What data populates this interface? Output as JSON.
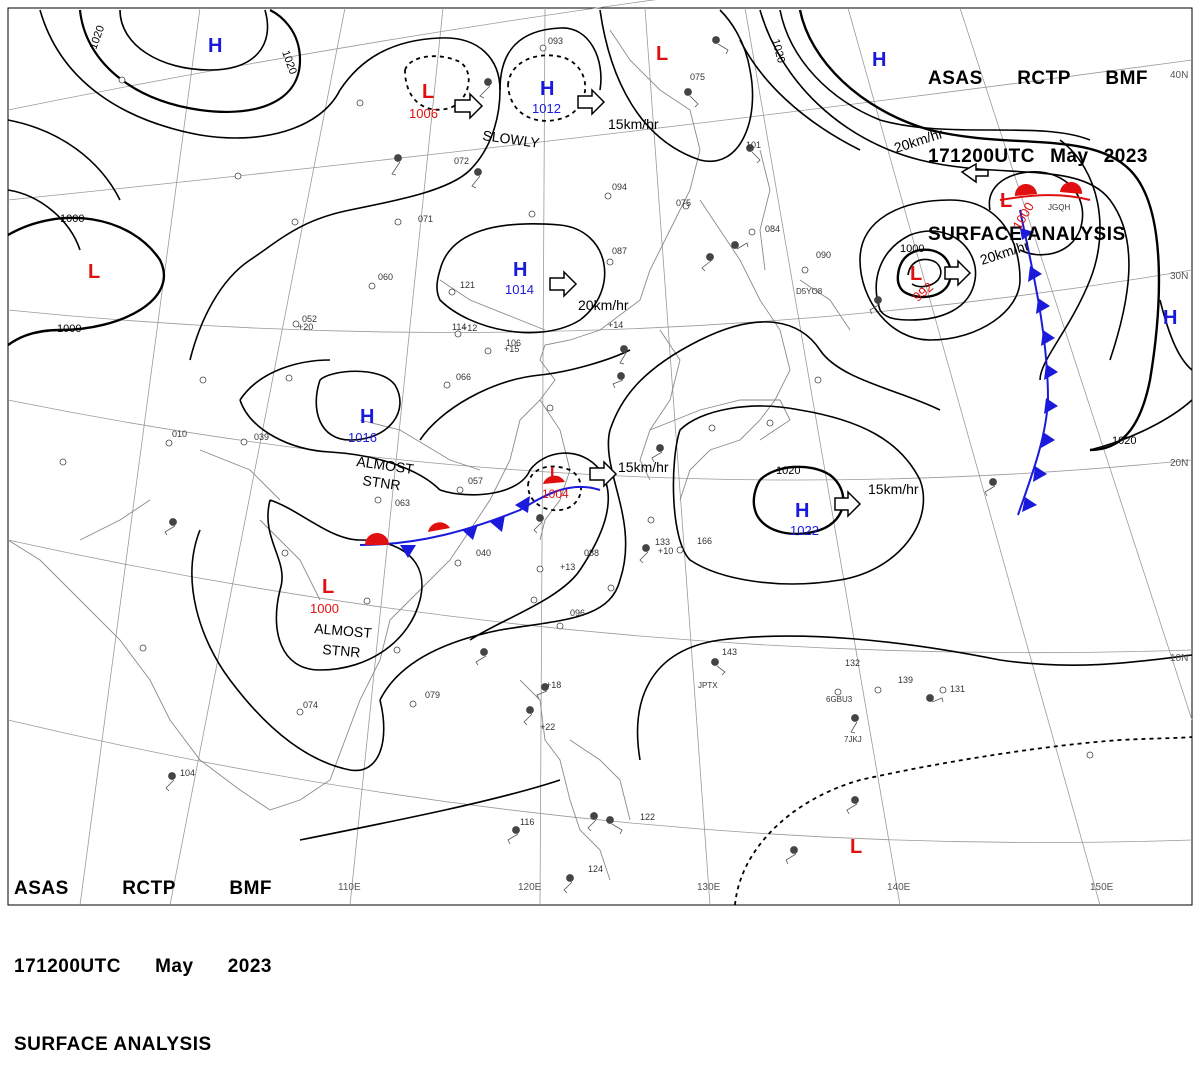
{
  "header": {
    "line1": [
      "ASAS",
      "RCTP",
      "BMF"
    ],
    "line2": [
      "171200UTC",
      "May",
      "2023"
    ],
    "line3": "SURFACE ANALYSIS"
  },
  "longitude_labels": [
    "110E",
    "120E",
    "130E",
    "140E",
    "150E"
  ],
  "latitude_labels": [
    "40N",
    "30N",
    "20N",
    "10N"
  ],
  "colors": {
    "high": "#1a1adc",
    "low": "#e01010",
    "isobar": "#000000",
    "grid": "#9a9a9a",
    "coast": "#8a8a8a"
  },
  "pressure_centers": [
    {
      "type": "H",
      "label": "H",
      "value": ""
    },
    {
      "type": "H",
      "label": "H",
      "value": "1012"
    },
    {
      "type": "H",
      "label": "H",
      "value": "1014"
    },
    {
      "type": "H",
      "label": "H",
      "value": "1016"
    },
    {
      "type": "H",
      "label": "H",
      "value": "1022"
    },
    {
      "type": "H",
      "label": "H",
      "value": ""
    },
    {
      "type": "H",
      "label": "H",
      "value": ""
    },
    {
      "type": "L",
      "label": "L",
      "value": "1006"
    },
    {
      "type": "L",
      "label": "L",
      "value": ""
    },
    {
      "type": "L",
      "label": "L",
      "value": ""
    },
    {
      "type": "L",
      "label": "L",
      "value": "1000"
    },
    {
      "type": "L",
      "label": "L",
      "value": "992"
    },
    {
      "type": "L",
      "label": "L",
      "value": "1004"
    },
    {
      "type": "L",
      "label": "L",
      "value": "1000"
    },
    {
      "type": "L",
      "label": "L",
      "value": ""
    }
  ],
  "motion_labels": [
    "SLOWLY",
    "15km/hr",
    "20km/hr",
    "20km/hr",
    "20km/hr",
    "15km/hr",
    "15km/hr"
  ],
  "annotations": [
    "ALMOST",
    "STNR",
    "ALMOST",
    "STNR"
  ],
  "isobar_labels": [
    "1020",
    "1020",
    "1000",
    "1000",
    "1020",
    "1020",
    "1000",
    "1020"
  ],
  "station_codes": [
    "D5YO8",
    "JPTX",
    "JGQH",
    "6GBU3",
    "7JKJ"
  ],
  "station_numbers": [
    "093",
    "072",
    "071",
    "094",
    "075",
    "087",
    "121",
    "060",
    "052",
    "106",
    "114",
    "066",
    "039",
    "010",
    "057",
    "063",
    "040",
    "088",
    "096",
    "079",
    "074",
    "104",
    "116",
    "124",
    "122",
    "133",
    "166",
    "143",
    "139",
    "131",
    "132",
    "084",
    "090",
    "075",
    "101",
    "+12",
    "+14",
    "+15",
    "+20",
    "+13",
    "+10",
    "+22",
    "+18"
  ]
}
